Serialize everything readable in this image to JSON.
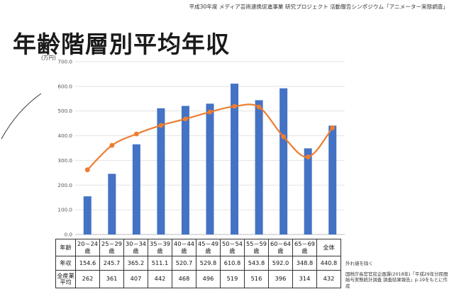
{
  "header": "平成30年度 メディア芸術連携促進事業 研究プロジェクト 活動報告シンポジウム「アニメーター実態調査」",
  "title": "年齢階層別平均年収",
  "chart_data": {
    "type": "bar",
    "unit_label": "(万円)",
    "ylim": [
      0,
      700
    ],
    "yticks": [
      "0.0",
      "100.0",
      "200.0",
      "300.0",
      "400.0",
      "500.0",
      "600.0",
      "700.0"
    ],
    "grid": true,
    "categories": [
      "20－24歳",
      "25－29歳",
      "30－34歳",
      "35－39歳",
      "40－44歳",
      "45－49歳",
      "50－54歳",
      "55－59歳",
      "60－64歳",
      "65－69歳",
      "全体"
    ],
    "series": [
      {
        "name": "年収",
        "type": "bar",
        "color": "#4472c4",
        "values": [
          154.6,
          245.7,
          365.2,
          511.1,
          520.7,
          529.8,
          610.8,
          543.8,
          592.0,
          348.8,
          440.8
        ]
      },
      {
        "name": "全産業平均",
        "type": "line",
        "color": "#ed7d31",
        "values": [
          262,
          361,
          407,
          442,
          468,
          496,
          519,
          516,
          396,
          314,
          432
        ]
      }
    ]
  },
  "table": {
    "header_label": "年齢",
    "columns": [
      [
        "20－24",
        "歳"
      ],
      [
        "25－29",
        "歳"
      ],
      [
        "30－34",
        "歳"
      ],
      [
        "35－39",
        "歳"
      ],
      [
        "40－44",
        "歳"
      ],
      [
        "45－49",
        "歳"
      ],
      [
        "50－54",
        "歳"
      ],
      [
        "55－59",
        "歳"
      ],
      [
        "60－64",
        "歳"
      ],
      [
        "65－69",
        "歳"
      ],
      [
        "全体"
      ]
    ],
    "rows": [
      {
        "label": [
          "年収"
        ],
        "values": [
          "154.6",
          "245.7",
          "365.2",
          "511.1",
          "520.7",
          "529.8",
          "610.8",
          "543.8",
          "592.0",
          "348.8",
          "440.8"
        ]
      },
      {
        "label": [
          "全産業",
          "平均"
        ],
        "values": [
          "262",
          "361",
          "407",
          "442",
          "468",
          "496",
          "519",
          "516",
          "396",
          "314",
          "432"
        ]
      }
    ]
  },
  "notes": {
    "exclude": "外れ値を除く",
    "source": "国税庁長官官房企画課(2018年)「平成29年分民間給与実態統計調査 調査結果報告」p.19をもとに作成"
  }
}
